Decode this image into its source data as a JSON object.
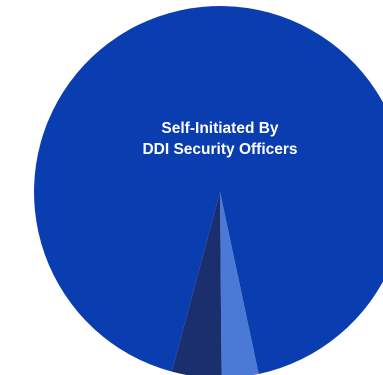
{
  "chart_data": {
    "type": "pie",
    "slices": [
      {
        "label": "Self-Initiated By DDI Security Officers",
        "label_lines": [
          "Self-Initiated By",
          "DDI Security Officers"
        ],
        "value": 92.5,
        "color": "#0a3db0"
      },
      {
        "label": "",
        "value": 3.2,
        "color": "#4a79d6"
      },
      {
        "label": "",
        "value": 4.3,
        "color": "#1b2f6e"
      }
    ],
    "legend": "none"
  }
}
